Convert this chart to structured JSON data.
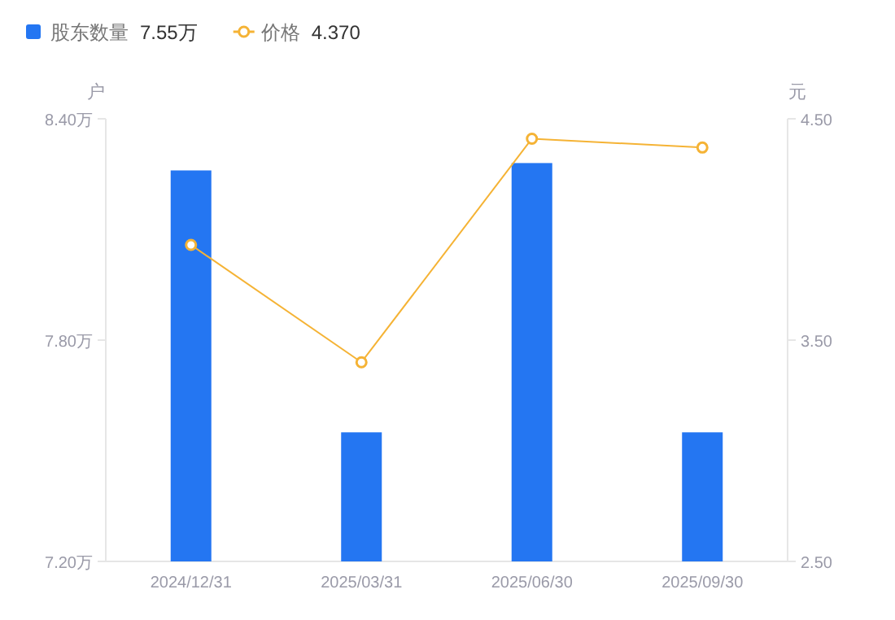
{
  "chart_data": {
    "type": "bar",
    "categories": [
      "2024/12/31",
      "2025/03/31",
      "2025/06/30",
      "2025/09/30"
    ],
    "series": [
      {
        "name": "股东数量",
        "color": "#2476f2",
        "values": [
          8.26,
          7.55,
          8.28,
          7.55
        ]
      },
      {
        "name": "价格",
        "type": "line",
        "axis": "y2",
        "color": "#f5b335",
        "marker": "circle",
        "values": [
          3.93,
          3.4,
          4.41,
          4.37
        ]
      }
    ],
    "ylabel": "户",
    "y2label": "元",
    "ylim": [
      7.2,
      8.4
    ],
    "yticks": [
      {
        "value": 7.2,
        "label": "7.20万"
      },
      {
        "value": 7.8,
        "label": "7.80万"
      },
      {
        "value": 8.4,
        "label": "8.40万"
      }
    ],
    "y2lim": [
      2.5,
      4.5
    ],
    "y2ticks": [
      {
        "value": 2.5,
        "label": "2.50"
      },
      {
        "value": 3.5,
        "label": "3.50"
      },
      {
        "value": 4.5,
        "label": "4.50"
      }
    ],
    "legend": "top left",
    "annotations": [
      "7.55万",
      "4.370"
    ]
  }
}
